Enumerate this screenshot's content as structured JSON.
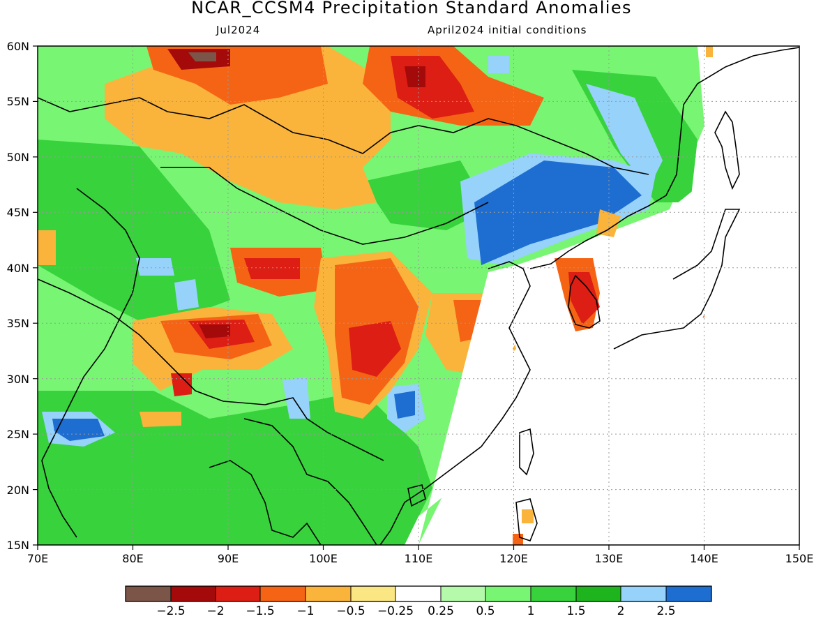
{
  "title": "NCAR_CCSM4 Precipitation Standard Anomalies",
  "subtitle_left": "Jul2024",
  "subtitle_right": "April2024 initial conditions",
  "map": {
    "lon_range": [
      70,
      150
    ],
    "lat_range": [
      15,
      60
    ],
    "lon_ticks": [
      "70E",
      "80E",
      "90E",
      "100E",
      "110E",
      "120E",
      "130E",
      "140E",
      "150E"
    ],
    "lat_ticks": [
      "60N",
      "55N",
      "50N",
      "45N",
      "40N",
      "35N",
      "30N",
      "25N",
      "20N",
      "15N"
    ],
    "gridlines": "dotted"
  },
  "colorbar": {
    "colors": [
      "#7a5548",
      "#a50a0a",
      "#dc1e14",
      "#f56414",
      "#fab43c",
      "#fae682",
      "#ffffff",
      "#b4faaa",
      "#78f573",
      "#37d23c",
      "#1eb41e",
      "#96d2fa",
      "#1e6ed2"
    ],
    "labels": [
      "−2.5",
      "−2",
      "−1.5",
      "−1",
      "−0.5",
      "−0.25",
      "0.25",
      "0.5",
      "1",
      "1.5",
      "2",
      "2.5"
    ]
  }
}
